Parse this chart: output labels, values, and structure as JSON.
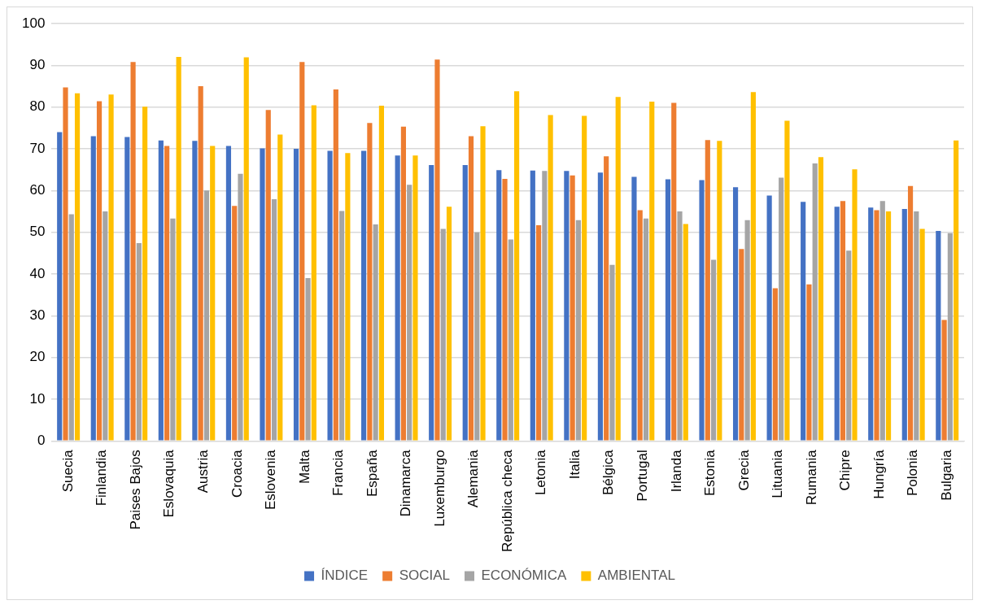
{
  "chart_data": {
    "type": "bar",
    "categories": [
      "Suecia",
      "Finlandia",
      "Paises Bajos",
      "Eslovaquia",
      "Austria",
      "Croacia",
      "Eslovenia",
      "Malta",
      "Francia",
      "España",
      "Dinamarca",
      "Luxemburgo",
      "Alemania",
      "República checa",
      "Letonia",
      "Italia",
      "Bélgica",
      "Portugal",
      "Irlanda",
      "Estonia",
      "Grecia",
      "Lituania",
      "Rumania",
      "Chipre",
      "Hungría",
      "Polonia",
      "Bulgaria"
    ],
    "series": [
      {
        "name": "ÍNDICE",
        "color": "#4472c4",
        "values": [
          74,
          73,
          72.8,
          72,
          71.9,
          70.7,
          70.1,
          70,
          69.5,
          69.5,
          68.4,
          66.1,
          66.1,
          64.9,
          64.8,
          64.7,
          64.3,
          63.3,
          62.7,
          62.5,
          60.8,
          58.8,
          57.3,
          56.1,
          55.9,
          55.6,
          50.3
        ]
      },
      {
        "name": "SOCIAL",
        "color": "#ed7d31",
        "values": [
          84.7,
          81.4,
          90.8,
          70.7,
          85,
          56.3,
          79.3,
          90.8,
          84.2,
          76.2,
          75.3,
          91.4,
          73,
          62.8,
          51.7,
          63.6,
          68.2,
          55.3,
          81,
          72.1,
          46,
          36.6,
          37.5,
          57.5,
          55.3,
          61.1,
          29
        ]
      },
      {
        "name": "ECONÓMICA",
        "color": "#a5a5a5",
        "values": [
          54.3,
          55,
          47.4,
          53.3,
          60,
          64,
          57.9,
          39,
          55.1,
          51.9,
          61.4,
          50.8,
          50,
          48.3,
          64.7,
          52.9,
          42.2,
          53.3,
          55,
          43.4,
          52.9,
          63.1,
          66.5,
          45.6,
          57.5,
          55,
          49.8
        ]
      },
      {
        "name": "AMBIENTAL",
        "color": "#ffc000",
        "values": [
          83.3,
          83,
          80.1,
          92,
          70.7,
          91.9,
          73.4,
          80.4,
          69,
          80.3,
          68.4,
          56.1,
          75.4,
          83.8,
          78.1,
          77.9,
          82.4,
          81.3,
          52,
          71.9,
          83.6,
          76.7,
          68,
          65.1,
          55,
          50.8,
          72
        ]
      }
    ],
    "ylim": [
      0,
      100
    ],
    "yticks": [
      0,
      10,
      20,
      30,
      40,
      50,
      60,
      70,
      80,
      90,
      100
    ],
    "grid": "y",
    "legend": "bottom"
  }
}
